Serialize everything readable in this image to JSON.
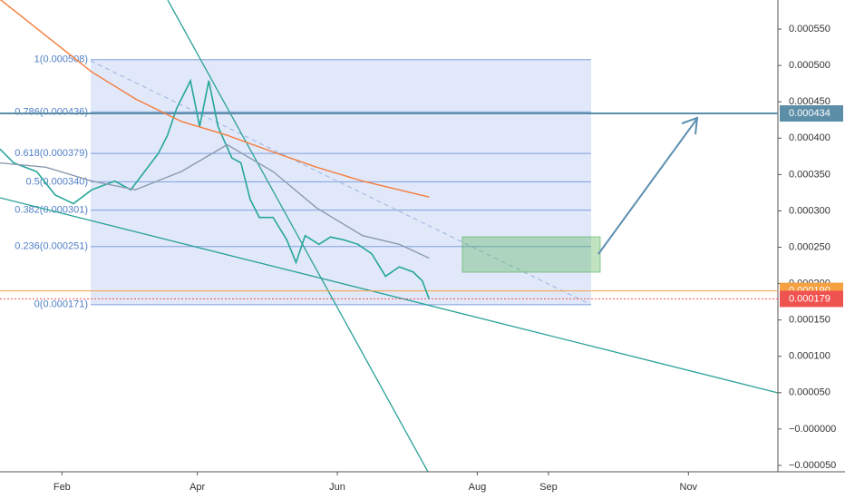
{
  "chart_data": {
    "type": "line",
    "xlim": [
      5,
      344
    ],
    "xticks": [
      {
        "value": 32,
        "label": "Feb"
      },
      {
        "value": 91,
        "label": "Apr"
      },
      {
        "value": 152,
        "label": "Jun"
      },
      {
        "value": 213,
        "label": "Aug"
      },
      {
        "value": 244,
        "label": "Sep"
      },
      {
        "value": 305,
        "label": "Nov"
      }
    ],
    "ylim": [
      -5.88e-05,
      0.00059
    ],
    "yticks": [
      {
        "value": 0.00055,
        "label": "0.000550"
      },
      {
        "value": 0.0005,
        "label": "0.000500"
      },
      {
        "value": 0.00045,
        "label": "0.000450"
      },
      {
        "value": 0.0004,
        "label": "0.000400"
      },
      {
        "value": 0.00035,
        "label": "0.000350"
      },
      {
        "value": 0.0003,
        "label": "0.000300"
      },
      {
        "value": 0.00025,
        "label": "0.000250"
      },
      {
        "value": 0.0002,
        "label": "0.000200"
      },
      {
        "value": 0.00015,
        "label": "0.000150"
      },
      {
        "value": 0.0001,
        "label": "0.000100"
      },
      {
        "value": 5e-05,
        "label": "0.000050"
      },
      {
        "value": 0,
        "label": "−0.000000"
      },
      {
        "value": -5e-05,
        "label": "−0.000050"
      }
    ],
    "series": [
      {
        "color": "#26a69a",
        "x": [
          5,
          11,
          21,
          29,
          37,
          45,
          55,
          62,
          68,
          74,
          78,
          82,
          88,
          92,
          96,
          100,
          106,
          110,
          114,
          118,
          124,
          130,
          134,
          138,
          144,
          149,
          155,
          161,
          167,
          173,
          179,
          185,
          189,
          192
        ],
        "values": [
          0.000385,
          0.000366,
          0.000354,
          0.000322,
          0.00031,
          0.000329,
          0.000341,
          0.000329,
          0.000354,
          0.000379,
          0.000404,
          0.000441,
          0.000479,
          0.000416,
          0.000479,
          0.000416,
          0.000373,
          0.000366,
          0.000316,
          0.000291,
          0.000291,
          0.00026,
          0.000229,
          0.000266,
          0.000254,
          0.000264,
          0.00026,
          0.000254,
          0.000241,
          0.00021,
          0.000223,
          0.000216,
          0.000204,
          0.000179
        ]
      },
      {
        "color": "#f57c3b",
        "x": [
          5,
          25,
          45,
          64,
          84,
          104,
          124,
          143,
          163,
          192
        ],
        "values": [
          0.000591,
          0.000541,
          0.000491,
          0.000454,
          0.000423,
          0.000404,
          0.000381,
          0.00036,
          0.000341,
          0.000319
        ]
      },
      {
        "color": "#8a9bb0",
        "x": [
          5,
          25,
          45,
          64,
          84,
          104,
          124,
          143,
          163,
          179,
          192
        ],
        "values": [
          0.000366,
          0.00036,
          0.000341,
          0.000329,
          0.000354,
          0.000391,
          0.000354,
          0.000304,
          0.000266,
          0.000254,
          0.000235
        ]
      }
    ],
    "fib": [
      {
        "label": "1(0.000508)",
        "value": 0.000508
      },
      {
        "label": "0.786(0.000436)",
        "value": 0.000436
      },
      {
        "label": "0.618(0.000379)",
        "value": 0.000379
      },
      {
        "label": "0.5(0.000340)",
        "value": 0.00034
      },
      {
        "label": "0.382(0.000301)",
        "value": 0.000301
      },
      {
        "label": "0.236(0.000251)",
        "value": 0.000251
      },
      {
        "label": "0(0.000171)",
        "value": 0.000171
      }
    ],
    "price_labels": [
      {
        "value": 0.000434,
        "label": "0.000434",
        "color": "#5d8ea8"
      },
      {
        "value": 0.00019,
        "label": "0.000190",
        "color": "#f5a142"
      },
      {
        "value": 0.000179,
        "label": "0.000179",
        "color": "#ef5350"
      }
    ]
  }
}
